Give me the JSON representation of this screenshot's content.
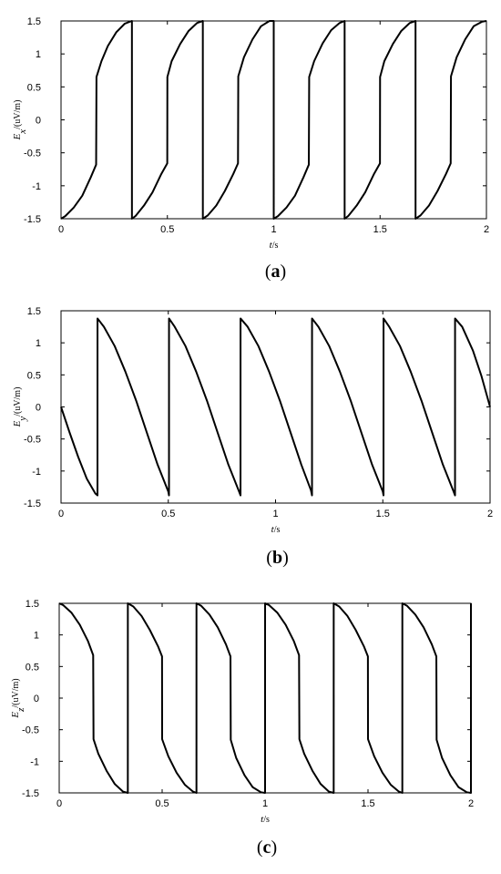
{
  "chart_data": [
    {
      "id": "a",
      "type": "line",
      "caption": {
        "open": "(",
        "letter": "a",
        "close": ")"
      },
      "xlabel": {
        "var": "t",
        "unit": "/s"
      },
      "ylabel": {
        "var": "E",
        "sub": "x",
        "unit": "/(uV/m)"
      },
      "xlim": [
        0,
        2
      ],
      "ylim": [
        -1.5,
        1.5
      ],
      "xticks": [
        "0",
        "0.5",
        "1",
        "1.5",
        "2"
      ],
      "yticks": [
        "-1.5",
        "-1",
        "-0.5",
        "0",
        "0.5",
        "1",
        "1.5"
      ],
      "xtick_values": [
        0,
        0.5,
        1,
        1.5,
        2
      ],
      "ytick_values": [
        -1.5,
        -1,
        -0.5,
        0,
        0.5,
        1,
        1.5
      ],
      "series": [
        {
          "x": [
            0,
            0.02,
            0.06,
            0.1,
            0.14,
            0.165,
            0.1667,
            0.19,
            0.22,
            0.26,
            0.3,
            0.333,
            0.3333,
            0.3334,
            0.35,
            0.39,
            0.43,
            0.47,
            0.4995,
            0.5,
            0.52,
            0.56,
            0.6,
            0.64,
            0.6665,
            0.6667,
            0.6668,
            0.69,
            0.73,
            0.77,
            0.81,
            0.832,
            0.8333,
            0.86,
            0.9,
            0.94,
            0.98,
            0.9999,
            1.0,
            1.0001,
            1.02,
            1.06,
            1.1,
            1.14,
            1.165,
            1.1667,
            1.19,
            1.23,
            1.27,
            1.31,
            1.333,
            1.3333,
            1.3334,
            1.35,
            1.39,
            1.43,
            1.47,
            1.4995,
            1.5,
            1.52,
            1.56,
            1.6,
            1.64,
            1.6665,
            1.6667,
            1.6668,
            1.69,
            1.73,
            1.77,
            1.81,
            1.832,
            1.8333,
            1.86,
            1.9,
            1.94,
            1.98,
            2.0
          ],
          "y": [
            -1.5,
            -1.46,
            -1.33,
            -1.15,
            -0.87,
            -0.68,
            0.65,
            0.89,
            1.12,
            1.33,
            1.46,
            1.5,
            1.5,
            -1.5,
            -1.46,
            -1.3,
            -1.1,
            -0.83,
            -0.66,
            0.65,
            0.89,
            1.15,
            1.35,
            1.47,
            1.5,
            1.5,
            -1.5,
            -1.45,
            -1.3,
            -1.08,
            -0.82,
            -0.66,
            0.66,
            0.95,
            1.22,
            1.42,
            1.5,
            1.5,
            1.5,
            -1.5,
            -1.46,
            -1.33,
            -1.15,
            -0.87,
            -0.68,
            0.65,
            0.89,
            1.16,
            1.36,
            1.47,
            1.5,
            1.5,
            -1.5,
            -1.46,
            -1.3,
            -1.1,
            -0.83,
            -0.66,
            0.65,
            0.89,
            1.15,
            1.35,
            1.47,
            1.5,
            1.5,
            -1.5,
            -1.45,
            -1.3,
            -1.08,
            -0.82,
            -0.66,
            0.66,
            0.95,
            1.22,
            1.42,
            1.49,
            1.5
          ]
        }
      ]
    },
    {
      "id": "b",
      "type": "line",
      "caption": {
        "open": "(",
        "letter": "b",
        "close": ")"
      },
      "xlabel": {
        "var": "t",
        "unit": "/s"
      },
      "ylabel": {
        "var": "E",
        "sub": "y",
        "unit": "/(uV/m)"
      },
      "xlim": [
        0,
        2
      ],
      "ylim": [
        -1.5,
        1.5
      ],
      "xticks": [
        "0",
        "0.5",
        "1",
        "1.5",
        "2"
      ],
      "yticks": [
        "-1.5",
        "-1",
        "-0.5",
        "0",
        "0.5",
        "1",
        "1.5"
      ],
      "xtick_values": [
        0,
        0.5,
        1,
        1.5,
        2
      ],
      "ytick_values": [
        -1.5,
        -1,
        -0.5,
        0,
        0.5,
        1,
        1.5
      ],
      "series": [
        {
          "x": [
            0,
            0.04,
            0.08,
            0.12,
            0.16,
            0.17,
            0.1701,
            0.2,
            0.25,
            0.3,
            0.35,
            0.4,
            0.45,
            0.5,
            0.5033,
            0.5034,
            0.53,
            0.58,
            0.63,
            0.68,
            0.73,
            0.78,
            0.83,
            0.8367,
            0.8368,
            0.87,
            0.92,
            0.97,
            1.02,
            1.07,
            1.12,
            1.165,
            1.17,
            1.1701,
            1.2,
            1.25,
            1.3,
            1.35,
            1.4,
            1.45,
            1.5,
            1.5033,
            1.5034,
            1.53,
            1.58,
            1.63,
            1.68,
            1.73,
            1.78,
            1.83,
            1.8367,
            1.8368,
            1.87,
            1.92,
            1.96,
            2.0
          ],
          "y": [
            0,
            -0.4,
            -0.78,
            -1.12,
            -1.35,
            -1.38,
            1.38,
            1.25,
            0.95,
            0.55,
            0.1,
            -0.4,
            -0.9,
            -1.32,
            -1.38,
            1.38,
            1.25,
            0.95,
            0.55,
            0.1,
            -0.4,
            -0.9,
            -1.32,
            -1.38,
            1.38,
            1.25,
            0.95,
            0.55,
            0.1,
            -0.4,
            -0.9,
            -1.3,
            -1.38,
            1.38,
            1.25,
            0.95,
            0.55,
            0.1,
            -0.4,
            -0.9,
            -1.32,
            -1.38,
            1.38,
            1.25,
            0.95,
            0.55,
            0.1,
            -0.4,
            -0.9,
            -1.32,
            -1.38,
            1.38,
            1.25,
            0.88,
            0.48,
            0.0
          ]
        }
      ]
    },
    {
      "id": "c",
      "type": "line",
      "caption": {
        "open": "(",
        "letter": "c",
        "close": ")"
      },
      "xlabel": {
        "var": "t",
        "unit": "/s"
      },
      "ylabel": {
        "var": "E",
        "sub": "z",
        "unit": "/(uV/m)"
      },
      "xlim": [
        0,
        2
      ],
      "ylim": [
        -1.5,
        1.5
      ],
      "xticks": [
        "0",
        "0.5",
        "1",
        "1.5",
        "2"
      ],
      "yticks": [
        "-1.5",
        "-1",
        "-0.5",
        "0",
        "0.5",
        "1",
        "1.5"
      ],
      "xtick_values": [
        0,
        0.5,
        1,
        1.5,
        2
      ],
      "ytick_values": [
        -1.5,
        -1,
        -0.5,
        0,
        0.5,
        1,
        1.5
      ],
      "series": [
        {
          "x": [
            0,
            0.02,
            0.06,
            0.1,
            0.14,
            0.165,
            0.1667,
            0.19,
            0.23,
            0.27,
            0.31,
            0.333,
            0.3333,
            0.3334,
            0.36,
            0.4,
            0.44,
            0.48,
            0.4995,
            0.5,
            0.53,
            0.57,
            0.61,
            0.65,
            0.6665,
            0.6667,
            0.6668,
            0.69,
            0.73,
            0.77,
            0.81,
            0.832,
            0.8333,
            0.86,
            0.9,
            0.94,
            0.98,
            0.9999,
            1.0,
            1.0001,
            1.02,
            1.06,
            1.1,
            1.14,
            1.165,
            1.1667,
            1.19,
            1.23,
            1.27,
            1.31,
            1.333,
            1.3333,
            1.3334,
            1.36,
            1.4,
            1.44,
            1.48,
            1.4995,
            1.5,
            1.53,
            1.57,
            1.61,
            1.65,
            1.6665,
            1.6667,
            1.6668,
            1.69,
            1.73,
            1.77,
            1.81,
            1.832,
            1.8333,
            1.86,
            1.9,
            1.94,
            1.98,
            2.0,
            2.0
          ],
          "y": [
            1.5,
            1.47,
            1.35,
            1.16,
            0.9,
            0.68,
            -0.65,
            -0.88,
            -1.15,
            -1.36,
            -1.48,
            -1.5,
            -1.5,
            1.5,
            1.45,
            1.3,
            1.08,
            0.82,
            0.66,
            -0.65,
            -0.92,
            -1.18,
            -1.37,
            -1.48,
            -1.5,
            -1.5,
            1.5,
            1.46,
            1.32,
            1.12,
            0.85,
            0.66,
            -0.66,
            -0.95,
            -1.22,
            -1.41,
            -1.49,
            -1.5,
            -1.5,
            1.5,
            1.47,
            1.35,
            1.16,
            0.9,
            0.68,
            -0.65,
            -0.88,
            -1.15,
            -1.36,
            -1.48,
            -1.5,
            -1.5,
            1.5,
            1.45,
            1.3,
            1.08,
            0.82,
            0.66,
            -0.65,
            -0.92,
            -1.18,
            -1.37,
            -1.48,
            -1.5,
            -1.5,
            1.5,
            1.46,
            1.32,
            1.12,
            0.85,
            0.66,
            -0.66,
            -0.95,
            -1.22,
            -1.41,
            -1.49,
            -1.5,
            1.5
          ]
        }
      ]
    }
  ]
}
